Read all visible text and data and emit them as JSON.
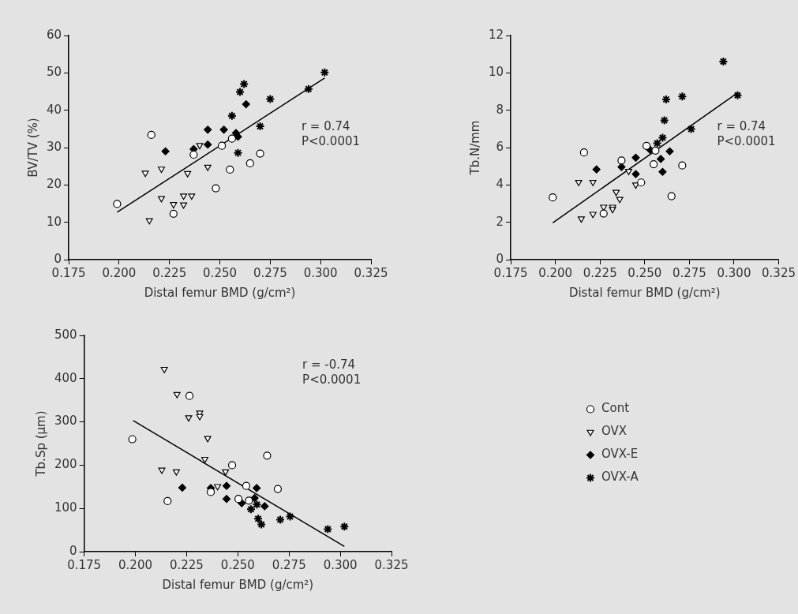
{
  "chart_data": [
    {
      "type": "scatter",
      "xlabel": "Distal femur BMD (g/cm²)",
      "ylabel": "BV/TV (%)",
      "xlim": [
        0.175,
        0.325
      ],
      "xticks": [
        0.175,
        {
          "value": 0.2,
          "label": "0.200"
        },
        0.225,
        {
          "value": 0.25,
          "label": "0.250"
        },
        0.275,
        {
          "value": 0.3,
          "label": "0.300"
        },
        0.325
      ],
      "ylim": [
        0,
        60
      ],
      "yticks": [
        0,
        10,
        20,
        30,
        40,
        50,
        60
      ],
      "grid": false,
      "annotations": [
        "r = 0.74",
        "P<0.0001"
      ],
      "series": [
        {
          "color": "#ffffff",
          "marker": "circle",
          "x": [
            0.199,
            0.216,
            0.227,
            0.237,
            0.248,
            0.251,
            0.255,
            0.256,
            0.265,
            0.27
          ],
          "values": [
            14.9,
            33.4,
            12.3,
            28.1,
            19.1,
            30.5,
            24.1,
            32.4,
            25.8,
            28.4
          ]
        },
        {
          "color": "#ffffff",
          "marker": "triangle",
          "x": [
            0.215,
            0.213,
            0.221,
            0.221,
            0.227,
            0.232,
            0.232,
            0.236,
            0.234,
            0.24,
            0.244
          ],
          "values": [
            10.5,
            23.2,
            24.3,
            16.4,
            14.8,
            14.7,
            17.1,
            17.1,
            23.1,
            30.6,
            24.8
          ]
        },
        {
          "color": "#000000",
          "marker": "diamond",
          "x": [
            0.223,
            0.237,
            0.244,
            0.244,
            0.252,
            0.258,
            0.259,
            0.263
          ],
          "values": [
            29,
            29.6,
            30.8,
            34.8,
            34.8,
            33.9,
            32.9,
            41.6
          ]
        },
        {
          "color": "#000000",
          "marker": "cross",
          "x": [
            0.256,
            0.26,
            0.262,
            0.259,
            0.275,
            0.27,
            0.294,
            0.302
          ],
          "values": [
            38.5,
            44.9,
            47,
            28.6,
            43,
            35.7,
            45.7,
            50.1
          ]
        },
        {
          "type": "line",
          "color": "#000000",
          "marker": "none",
          "x": [
            0.199,
            0.302
          ],
          "values": [
            12.7,
            48.6
          ]
        }
      ]
    },
    {
      "type": "scatter",
      "xlabel": "Distal femur BMD (g/cm²)",
      "ylabel": "Tb.N/mm",
      "xlim": [
        0.175,
        0.325
      ],
      "xticks": [
        0.175,
        {
          "value": 0.2,
          "label": "0.200"
        },
        0.225,
        {
          "value": 0.25,
          "label": "0.250"
        },
        0.275,
        {
          "value": 0.3,
          "label": "0.300"
        },
        0.325
      ],
      "ylim": [
        0,
        12
      ],
      "yticks": [
        0,
        2,
        4,
        6,
        8,
        10,
        12
      ],
      "grid": false,
      "annotations": [
        "r = 0.74",
        "P<0.0001"
      ],
      "series": [
        {
          "color": "#ffffff",
          "marker": "circle",
          "x": [
            0.1985,
            0.216,
            0.227,
            0.237,
            0.248,
            0.251,
            0.255,
            0.256,
            0.265,
            0.271
          ],
          "values": [
            3.33,
            5.74,
            2.47,
            5.31,
            4.13,
            6.09,
            5.11,
            5.84,
            3.4,
            5.04
          ]
        },
        {
          "color": "#ffffff",
          "marker": "triangle",
          "x": [
            0.2145,
            0.213,
            0.221,
            0.221,
            0.227,
            0.232,
            0.232,
            0.234,
            0.236,
            0.241,
            0.245
          ],
          "values": [
            2.19,
            4.15,
            4.15,
            2.44,
            2.82,
            2.82,
            2.7,
            3.62,
            3.24,
            4.74,
            4.01
          ]
        },
        {
          "color": "#000000",
          "marker": "diamond",
          "x": [
            0.223,
            0.237,
            0.245,
            0.245,
            0.253,
            0.259,
            0.26,
            0.264
          ],
          "values": [
            4.83,
            4.96,
            5.46,
            4.58,
            5.88,
            5.39,
            4.7,
            5.8
          ]
        },
        {
          "color": "#000000",
          "marker": "cross",
          "x": [
            0.257,
            0.26,
            0.261,
            0.262,
            0.271,
            0.276,
            0.294,
            0.302
          ],
          "values": [
            6.23,
            6.53,
            7.46,
            8.58,
            8.74,
            6.99,
            10.61,
            8.8
          ]
        },
        {
          "type": "line",
          "color": "#000000",
          "marker": "none",
          "x": [
            0.1985,
            0.302
          ],
          "values": [
            1.97,
            8.93
          ]
        }
      ]
    },
    {
      "type": "scatter",
      "xlabel": "Distal femur BMD (g/cm²)",
      "ylabel": "Tb.Sp (µm)",
      "xlim": [
        0.175,
        0.325
      ],
      "xticks": [
        0.175,
        {
          "value": 0.2,
          "label": "0.200"
        },
        0.225,
        {
          "value": 0.25,
          "label": "0.250"
        },
        0.275,
        {
          "value": 0.3,
          "label": "0.300"
        },
        0.325
      ],
      "ylim": [
        0,
        500
      ],
      "yticks": [
        0,
        100,
        200,
        300,
        400,
        500
      ],
      "grid": false,
      "legend": "right",
      "annotations": [
        "r = -0.74",
        "P<0.0001"
      ],
      "series": [
        {
          "name": "Cont",
          "color": "#ffffff",
          "marker": "circle",
          "x": [
            0.1985,
            0.2157,
            0.2264,
            0.2368,
            0.2472,
            0.2541,
            0.2503,
            0.2554,
            0.2643,
            0.2695
          ],
          "values": [
            260,
            117,
            360,
            138,
            200,
            152,
            122,
            118,
            222,
            145
          ]
        },
        {
          "name": "OVX",
          "color": "#ffffff",
          "marker": "triangle",
          "x": [
            0.2141,
            0.2203,
            0.226,
            0.2314,
            0.2314,
            0.2353,
            0.2339,
            0.2129,
            0.22,
            0.244,
            0.2401
          ],
          "values": [
            422,
            364,
            310,
            321,
            313,
            262,
            214,
            189,
            185,
            185,
            151
          ]
        },
        {
          "name": "OVX-E",
          "color": "#000000",
          "marker": "diamond",
          "x": [
            0.2229,
            0.2368,
            0.2445,
            0.2445,
            0.2519,
            0.2582,
            0.2592,
            0.2631
          ],
          "values": [
            148,
            147,
            152,
            122,
            112,
            124,
            147,
            105
          ]
        },
        {
          "name": "OVX-A",
          "color": "#000000",
          "marker": "cross",
          "x": [
            0.2564,
            0.2593,
            0.2599,
            0.2615,
            0.2707,
            0.2755,
            0.2939,
            0.302
          ],
          "values": [
            98,
            109,
            76,
            63,
            74,
            81,
            52,
            58
          ]
        },
        {
          "type": "line",
          "color": "#000000",
          "marker": "none",
          "x": [
            0.1989,
            0.302
          ],
          "values": [
            303,
            12
          ]
        }
      ]
    }
  ]
}
